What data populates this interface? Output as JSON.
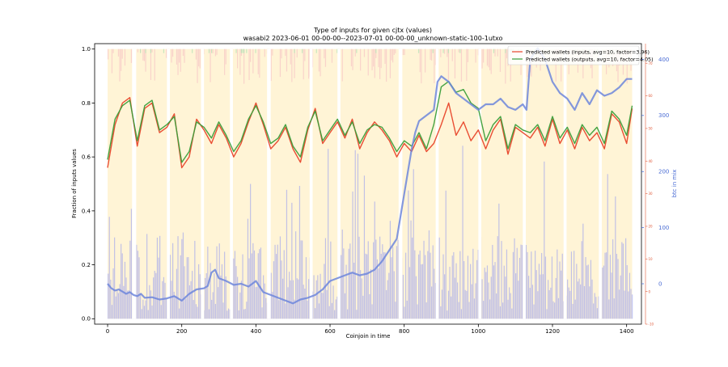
{
  "chart_data": {
    "type": "line",
    "title": "Type of inputs for given cjtx (values)",
    "subtitle": "wasabi2 2023-06-01 00-00-00--2023-07-01 00-00-00_unknown-static-100-1utxo",
    "xlabel": "Coinjoin in time",
    "ylabel": "Fraction of inputs values",
    "ylabel_right": "btc in mix",
    "xlim": [
      -35,
      1440
    ],
    "ylim": [
      -0.02,
      1.02
    ],
    "right_ylim": [
      -72,
      428
    ],
    "wallet_ylim": [
      -10,
      76
    ],
    "x_ticks": [
      0,
      200,
      400,
      600,
      800,
      1000,
      1200,
      1400
    ],
    "y_ticks": [
      0.0,
      0.2,
      0.4,
      0.6,
      0.8,
      1.0
    ],
    "right_ticks": [
      0,
      100,
      200,
      300,
      400
    ],
    "wallet_ticks": [
      -10,
      0,
      10,
      20,
      30,
      40,
      50,
      60,
      70
    ],
    "grid": false,
    "legend_position": "top-right",
    "gaps": [
      [
        66,
        77
      ],
      [
        160,
        168
      ],
      [
        252,
        260
      ],
      [
        330,
        338
      ],
      [
        430,
        440
      ],
      [
        545,
        553
      ],
      [
        620,
        628
      ],
      [
        785,
        795
      ],
      [
        885,
        893
      ],
      [
        1000,
        1008
      ],
      [
        1120,
        1128
      ],
      [
        1230,
        1238
      ],
      [
        1325,
        1333
      ]
    ],
    "series": [
      {
        "name": "Predicted wallets (inputs, avg=10, factor=3.96)",
        "color": "#e8442a",
        "x": [
          0,
          20,
          40,
          60,
          80,
          100,
          120,
          140,
          160,
          180,
          200,
          220,
          240,
          260,
          280,
          300,
          320,
          340,
          360,
          380,
          400,
          420,
          440,
          460,
          480,
          500,
          520,
          540,
          560,
          580,
          600,
          620,
          640,
          660,
          680,
          700,
          720,
          740,
          760,
          780,
          800,
          820,
          840,
          860,
          880,
          900,
          920,
          940,
          960,
          980,
          1000,
          1020,
          1040,
          1060,
          1080,
          1100,
          1120,
          1140,
          1160,
          1180,
          1200,
          1220,
          1240,
          1260,
          1280,
          1300,
          1320,
          1340,
          1360,
          1380,
          1400,
          1415
        ],
        "y": [
          0.56,
          0.72,
          0.8,
          0.82,
          0.64,
          0.78,
          0.8,
          0.69,
          0.71,
          0.76,
          0.56,
          0.6,
          0.74,
          0.7,
          0.65,
          0.72,
          0.67,
          0.6,
          0.65,
          0.73,
          0.8,
          0.72,
          0.63,
          0.66,
          0.71,
          0.63,
          0.58,
          0.7,
          0.78,
          0.65,
          0.69,
          0.73,
          0.67,
          0.74,
          0.63,
          0.69,
          0.73,
          0.7,
          0.66,
          0.6,
          0.65,
          0.62,
          0.68,
          0.62,
          0.65,
          0.72,
          0.8,
          0.68,
          0.73,
          0.66,
          0.7,
          0.63,
          0.7,
          0.74,
          0.61,
          0.71,
          0.69,
          0.67,
          0.71,
          0.64,
          0.74,
          0.65,
          0.7,
          0.63,
          0.71,
          0.66,
          0.69,
          0.63,
          0.76,
          0.73,
          0.65,
          0.78
        ]
      },
      {
        "name": "Predicted wallets (outputs, avg=10, factor=4.05)",
        "color": "#3a9e3a",
        "x": [
          0,
          20,
          40,
          60,
          80,
          100,
          120,
          140,
          160,
          180,
          200,
          220,
          240,
          260,
          280,
          300,
          320,
          340,
          360,
          380,
          400,
          420,
          440,
          460,
          480,
          500,
          520,
          540,
          560,
          580,
          600,
          620,
          640,
          660,
          680,
          700,
          720,
          740,
          760,
          780,
          800,
          820,
          840,
          860,
          880,
          900,
          920,
          940,
          960,
          980,
          1000,
          1020,
          1040,
          1060,
          1080,
          1100,
          1120,
          1140,
          1160,
          1180,
          1200,
          1220,
          1240,
          1260,
          1280,
          1300,
          1320,
          1340,
          1360,
          1380,
          1400,
          1415
        ],
        "y": [
          0.59,
          0.74,
          0.79,
          0.81,
          0.66,
          0.79,
          0.81,
          0.7,
          0.72,
          0.75,
          0.58,
          0.62,
          0.73,
          0.71,
          0.67,
          0.73,
          0.68,
          0.62,
          0.66,
          0.74,
          0.79,
          0.73,
          0.65,
          0.67,
          0.72,
          0.64,
          0.6,
          0.71,
          0.77,
          0.66,
          0.7,
          0.74,
          0.68,
          0.73,
          0.65,
          0.7,
          0.72,
          0.71,
          0.67,
          0.62,
          0.66,
          0.64,
          0.69,
          0.63,
          0.72,
          0.86,
          0.88,
          0.84,
          0.85,
          0.8,
          0.78,
          0.66,
          0.72,
          0.75,
          0.63,
          0.72,
          0.7,
          0.69,
          0.72,
          0.66,
          0.75,
          0.67,
          0.71,
          0.65,
          0.72,
          0.68,
          0.71,
          0.65,
          0.77,
          0.74,
          0.68,
          0.79
        ]
      },
      {
        "name": "btc in mix",
        "color": "#6d86dc",
        "axis": "right",
        "x": [
          0,
          10,
          20,
          30,
          40,
          50,
          60,
          70,
          80,
          90,
          100,
          120,
          140,
          160,
          180,
          200,
          220,
          240,
          260,
          270,
          280,
          290,
          300,
          320,
          340,
          360,
          380,
          400,
          420,
          440,
          460,
          480,
          500,
          520,
          540,
          560,
          580,
          600,
          620,
          640,
          660,
          680,
          700,
          720,
          740,
          760,
          780,
          790,
          800,
          810,
          820,
          830,
          840,
          860,
          880,
          890,
          900,
          920,
          940,
          960,
          980,
          1000,
          1020,
          1040,
          1060,
          1080,
          1100,
          1120,
          1130,
          1140,
          1160,
          1180,
          1200,
          1220,
          1240,
          1260,
          1280,
          1300,
          1320,
          1340,
          1360,
          1380,
          1400,
          1415
        ],
        "y": [
          0,
          -8,
          -12,
          -10,
          -14,
          -18,
          -15,
          -20,
          -22,
          -18,
          -25,
          -24,
          -28,
          -26,
          -22,
          -30,
          -18,
          -10,
          -8,
          -4,
          20,
          25,
          10,
          5,
          -2,
          0,
          -5,
          5,
          -15,
          -20,
          -25,
          -30,
          -35,
          -28,
          -25,
          -20,
          -10,
          5,
          10,
          15,
          20,
          15,
          18,
          25,
          40,
          60,
          80,
          120,
          160,
          200,
          240,
          270,
          290,
          300,
          310,
          360,
          370,
          360,
          340,
          330,
          320,
          310,
          320,
          320,
          330,
          315,
          310,
          320,
          310,
          400,
          420,
          400,
          360,
          340,
          330,
          310,
          340,
          320,
          345,
          335,
          340,
          350,
          365,
          365
        ]
      }
    ]
  }
}
